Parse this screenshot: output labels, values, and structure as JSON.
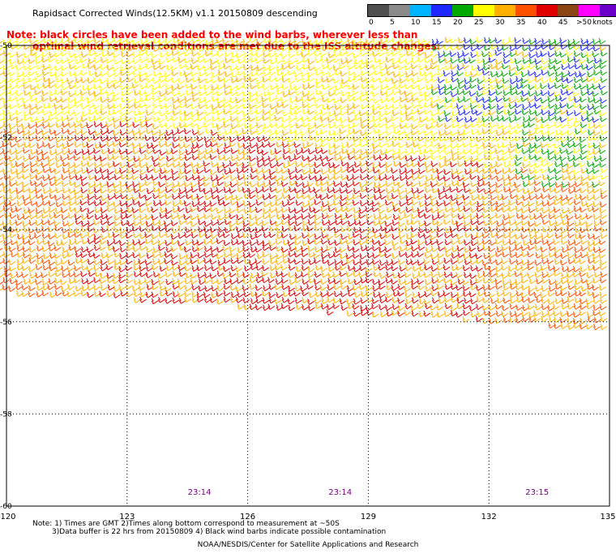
{
  "title": "Rapidsact Corrected Winds(12.5KM) v1.1 20150809 descending",
  "note": {
    "line1": "Note: black circles have been added to the wind barbs, wherever less than",
    "line2": "optimal wind retrieval conditions are met due to the ISS altitude changes."
  },
  "legend": {
    "unit": "knots",
    "labels": [
      "0",
      "5",
      "10",
      "15",
      "20",
      "25",
      "30",
      "35",
      "40",
      "45",
      ">50"
    ],
    "colors": [
      "#505050",
      "#8a8a8a",
      "#00b4ff",
      "#1e28ff",
      "#00aa00",
      "#ffff00",
      "#ffb000",
      "#ff5000",
      "#e00000",
      "#8b4513",
      "#ff00ff",
      "#6a00c8"
    ]
  },
  "map": {
    "lon_labels": [
      "120",
      "123",
      "126",
      "129",
      "132",
      "135"
    ],
    "lat_labels": [
      "-50",
      "-52",
      "-54",
      "-56",
      "-58",
      "-60"
    ],
    "lon_range": [
      120,
      135
    ],
    "lat_range": [
      -60,
      -50
    ],
    "times": [
      {
        "lon": 124.8,
        "label": "23:14"
      },
      {
        "lon": 128.3,
        "label": "23:14"
      },
      {
        "lon": 133.2,
        "label": "23:15"
      }
    ]
  },
  "footnote": {
    "line1": "Note: 1) Times are GMT 2)Times along bottom correspond to measurement at ~50S",
    "line2": "3)Data buffer is 22 hrs from 20150809 4) Black wind barbs indicate possible contamination"
  },
  "credit": "NOAA/NESDIS/Center for Satellite Applications and Research"
}
